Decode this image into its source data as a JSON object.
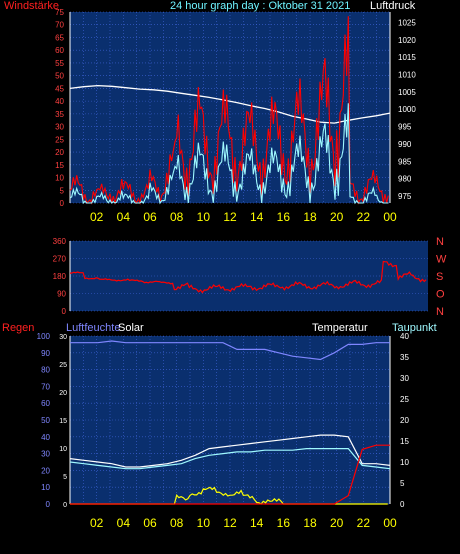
{
  "header": {
    "left": "Windstärke",
    "center": "24 hour graph day : Oktober 31 2021",
    "right": "Luftdruck"
  },
  "colors": {
    "background": "#000000",
    "plot_bg": "#0a2f6e",
    "grid": "#3f63d8",
    "red": "#ff0000",
    "cyan": "#9ff9ff",
    "white": "#ffffff",
    "yellow": "#ffff00",
    "periwinkle": "#7f86ff",
    "axis_left": "#ff4040",
    "axis_right": "#ffffff",
    "x_labels": "#ffff00"
  },
  "chart_data": [
    {
      "type": "line",
      "id": "wind-pressure",
      "x_ticks": [
        "02",
        "04",
        "06",
        "08",
        "10",
        "12",
        "14",
        "16",
        "18",
        "20",
        "22",
        "00"
      ],
      "left_axis": {
        "label": "Windstärke",
        "ticks": [
          0,
          5,
          10,
          15,
          20,
          25,
          30,
          35,
          40,
          45,
          50,
          55,
          60,
          65,
          70,
          75
        ],
        "ylim": [
          0,
          75
        ]
      },
      "right_axis": {
        "label": "Luftdruck",
        "ticks": [
          975,
          980,
          985,
          990,
          995,
          1000,
          1005,
          1010,
          1015,
          1020,
          1025
        ],
        "ylim": [
          973,
          1028
        ]
      },
      "series": [
        {
          "axis": "right",
          "color": "white",
          "values": [
            1006,
            1006.5,
            1006.8,
            1006.6,
            1006.2,
            1005.8,
            1005.6,
            1005.2,
            1004.6,
            1004,
            1003.4,
            1002.7,
            1001.9,
            1001,
            1000.2,
            999.2,
            998,
            997.2,
            996.3,
            996,
            996.8,
            997.5,
            998.1,
            998.9
          ]
        },
        {
          "axis": "left",
          "color": "red",
          "values": [
            5,
            4,
            3,
            5,
            4,
            4,
            6,
            13,
            20,
            25,
            22,
            24,
            24,
            22,
            24,
            23,
            25,
            26,
            29,
            33,
            40,
            5,
            6,
            6
          ]
        },
        {
          "axis": "left",
          "color": "cyan",
          "values": [
            2,
            1,
            1,
            2,
            1,
            1,
            3,
            7,
            10,
            12,
            11,
            12,
            12,
            11,
            12,
            11,
            13,
            13,
            15,
            17,
            20,
            1,
            2,
            1
          ]
        }
      ]
    },
    {
      "type": "line",
      "id": "wind-direction",
      "y_ticks": [
        0,
        90,
        180,
        270,
        360
      ],
      "ylim": [
        0,
        360
      ],
      "direction_labels": [
        "N",
        "W",
        "S",
        "O",
        "N"
      ],
      "series": [
        {
          "color": "red",
          "values": [
            195,
            170,
            160,
            160,
            155,
            150,
            145,
            125,
            115,
            115,
            120,
            120,
            125,
            125,
            130,
            130,
            130,
            130,
            135,
            140,
            140,
            245,
            180,
            170
          ]
        }
      ]
    },
    {
      "type": "line",
      "id": "humidity-temp",
      "labels": {
        "regen": "Regen",
        "luftfeuchte": "Luftfeuchte",
        "solar": "Solar",
        "temperatur": "Temperatur",
        "taupunkt": "Taupunkt"
      },
      "left_axis": {
        "ticks": [
          0,
          10,
          20,
          30,
          40,
          50,
          60,
          70,
          80,
          90,
          100
        ],
        "ylim": [
          0,
          100
        ]
      },
      "inner_axis": {
        "ticks": [
          0,
          5,
          10,
          15,
          20,
          25,
          30
        ],
        "ylim": [
          0,
          30
        ]
      },
      "right_axis": {
        "ticks": [
          0,
          5,
          10,
          15,
          20,
          25,
          30,
          35,
          40
        ],
        "ylim": [
          0,
          40
        ]
      },
      "series": [
        {
          "name": "Luftfeuchte",
          "color": "periwinkle",
          "axis": "left",
          "values": [
            96,
            96,
            96,
            97,
            96,
            96,
            96,
            96,
            96,
            96,
            96,
            96,
            92,
            92,
            92,
            90,
            88,
            87,
            86,
            90,
            95,
            95,
            96,
            96
          ]
        },
        {
          "name": "Temperatur",
          "color": "white",
          "axis": "left",
          "values": [
            27,
            26,
            25,
            24,
            22,
            22,
            23,
            24,
            26,
            29,
            33,
            34,
            35,
            36,
            37,
            38,
            39,
            40,
            41,
            41,
            40,
            24,
            24,
            23
          ]
        },
        {
          "name": "Taupunkt",
          "color": "cyan",
          "axis": "left",
          "values": [
            25,
            24,
            23,
            22,
            21,
            21,
            22,
            23,
            24,
            27,
            29,
            30,
            31,
            31,
            32,
            32,
            32,
            33,
            33,
            33,
            33,
            23,
            22,
            21
          ]
        },
        {
          "name": "Solar",
          "color": "yellow",
          "axis": "left",
          "values": [
            0,
            0,
            0,
            0,
            0,
            0,
            0,
            0,
            3,
            7,
            8,
            7,
            6,
            4,
            2,
            1,
            0,
            0,
            0,
            0,
            0,
            0,
            0,
            0
          ]
        },
        {
          "name": "Regen",
          "color": "red",
          "axis": "right",
          "values": [
            0,
            0,
            0,
            0,
            0,
            0,
            0,
            0,
            0,
            0,
            0,
            0,
            0,
            0,
            0,
            0,
            0,
            0,
            0,
            0,
            2,
            13,
            14,
            14
          ]
        }
      ]
    }
  ]
}
